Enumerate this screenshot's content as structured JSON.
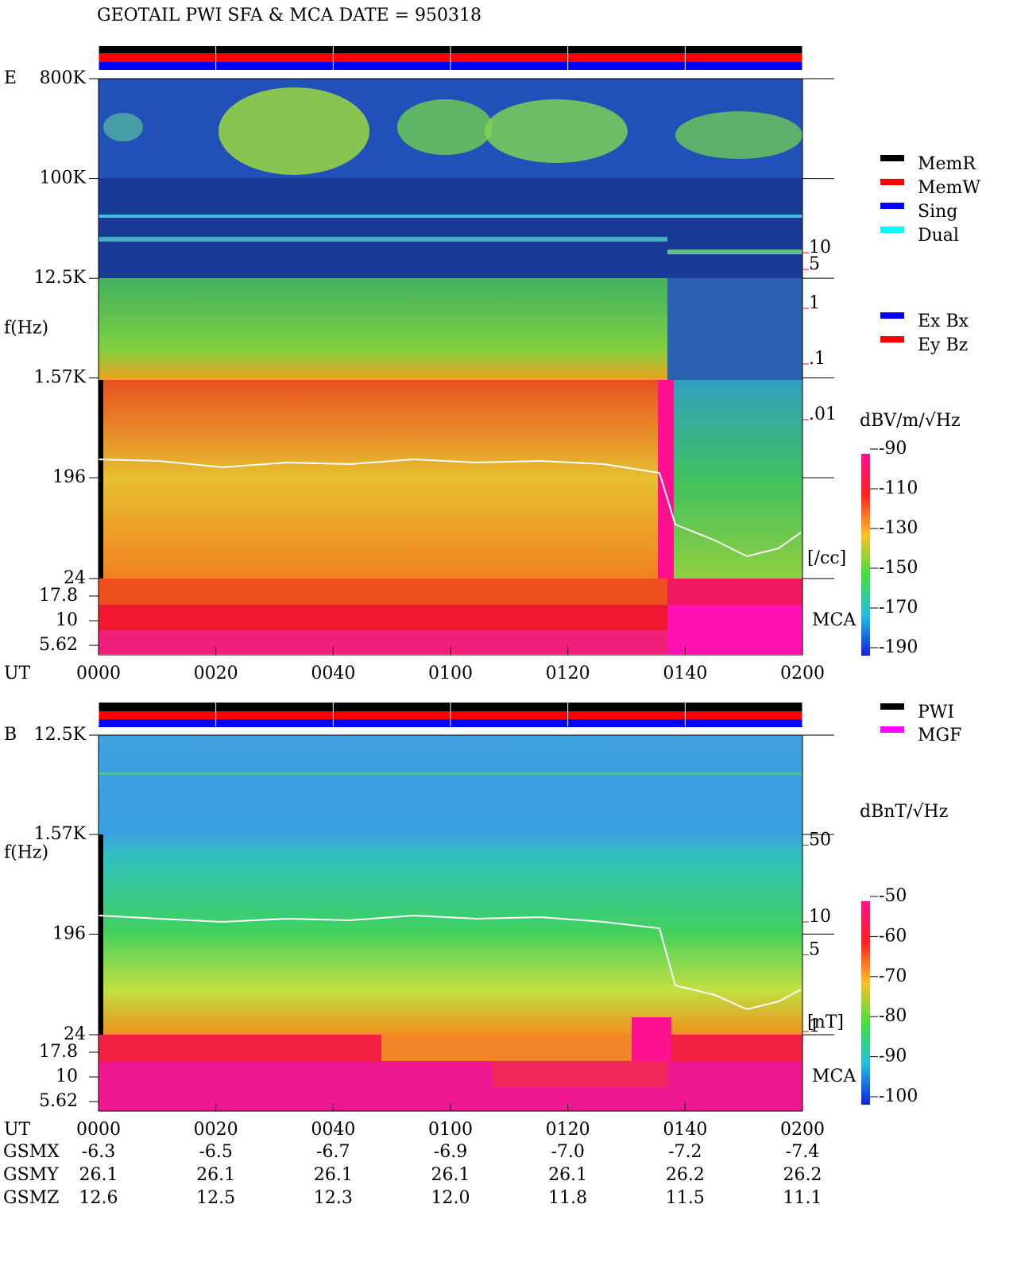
{
  "title": "GEOTAIL  PWI SFA & MCA   DATE = 950318",
  "chart_data": [
    {
      "type": "spectrogram",
      "panel_label": "E",
      "y_label": "f(Hz)",
      "x_label": "UT",
      "yscale": "log",
      "ylim": [
        24,
        800000
      ],
      "yticks": [
        {
          "value": 800000,
          "label": "800K"
        },
        {
          "value": 100000,
          "label": "100K"
        },
        {
          "value": 12500,
          "label": "12.5K"
        },
        {
          "value": 1570,
          "label": "1.57K"
        },
        196,
        24
      ],
      "mca_label": "MCA",
      "mca_ticks": [
        17.8,
        10,
        5.62
      ],
      "xlim": [
        0,
        120
      ],
      "xticks": [
        {
          "value": 0,
          "label": "0000"
        },
        {
          "value": 20,
          "label": "0020"
        },
        {
          "value": 40,
          "label": "0040"
        },
        {
          "value": 60,
          "label": "0100"
        },
        {
          "value": 80,
          "label": "0120"
        },
        {
          "value": 100,
          "label": "0140"
        },
        {
          "value": 120,
          "label": "0200"
        }
      ],
      "density_ticks": [
        10,
        5,
        1,
        {
          "value": 0.1,
          "label": ".1"
        },
        {
          "value": 0.01,
          "label": ".01"
        }
      ],
      "density_unit": "[/cc]",
      "density_color": "#ff0000",
      "colorbar": {
        "label": "dBV/m/√Hz",
        "lim": [
          -190,
          -90
        ],
        "ticks": [
          -90,
          -110,
          -130,
          -150,
          -170,
          -190
        ]
      },
      "legend": [
        {
          "name": "MemR",
          "color": "#000000"
        },
        {
          "name": "MemW",
          "color": "#ff0000"
        },
        {
          "name": "Sing",
          "color": "#0000ff"
        },
        {
          "name": "Dual",
          "color": "#00ffff"
        }
      ],
      "legend2": [
        {
          "name": "Ex Bx",
          "color": "#0000ff"
        },
        {
          "name": "Ey Bz",
          "color": "#ff0000"
        }
      ]
    },
    {
      "type": "spectrogram",
      "panel_label": "B",
      "y_label": "f(Hz)",
      "x_label": "UT",
      "yscale": "log",
      "ylim": [
        24,
        12500
      ],
      "yticks": [
        {
          "value": 12500,
          "label": "12.5K"
        },
        {
          "value": 1570,
          "label": "1.57K"
        },
        196,
        24
      ],
      "mca_label": "MCA",
      "mca_ticks": [
        17.8,
        10,
        5.62
      ],
      "xlim": [
        0,
        120
      ],
      "xticks": [
        {
          "value": 0,
          "label": "0000"
        },
        {
          "value": 20,
          "label": "0020"
        },
        {
          "value": 40,
          "label": "0040"
        },
        {
          "value": 60,
          "label": "0100"
        },
        {
          "value": 80,
          "label": "0120"
        },
        {
          "value": 100,
          "label": "0140"
        },
        {
          "value": 120,
          "label": "0200"
        }
      ],
      "density_ticks": [
        50,
        10,
        5,
        1
      ],
      "density_unit": "[nT]",
      "density_color": "#ff0000",
      "colorbar": {
        "label": "dBnT/√Hz",
        "lim": [
          -100,
          -50
        ],
        "ticks": [
          -50,
          -60,
          -70,
          -80,
          -90,
          -100
        ]
      },
      "legend": [
        {
          "name": "PWI",
          "color": "#000000"
        },
        {
          "name": "MGF",
          "color": "#ff00ff"
        }
      ]
    }
  ],
  "orbit": {
    "rows": [
      {
        "name": "GSMX",
        "values": [
          -6.3,
          -6.5,
          -6.7,
          -6.9,
          {
            "value": -7,
            "label": "-7.0"
          },
          -7.2,
          -7.4
        ]
      },
      {
        "name": "GSMY",
        "values": [
          26.1,
          26.1,
          26.1,
          26.1,
          26.1,
          26.2,
          26.2
        ]
      },
      {
        "name": "GSMZ",
        "values": [
          12.6,
          12.5,
          12.3,
          {
            "value": 12,
            "label": "12.0"
          },
          11.8,
          11.5,
          11.1
        ]
      }
    ]
  }
}
